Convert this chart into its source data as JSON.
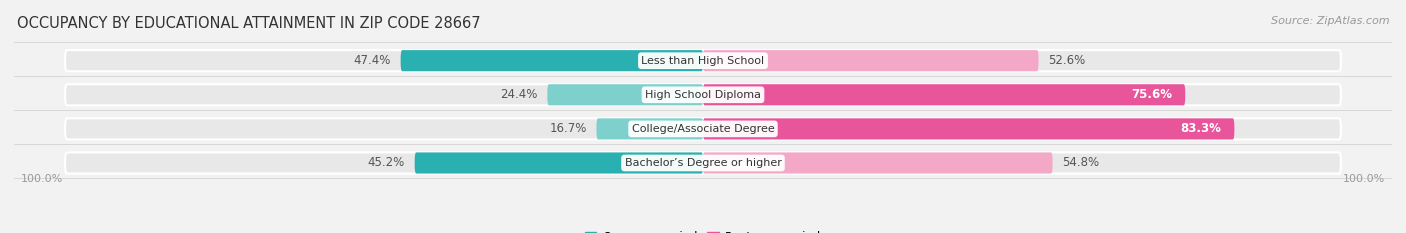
{
  "title": "OCCUPANCY BY EDUCATIONAL ATTAINMENT IN ZIP CODE 28667",
  "source": "Source: ZipAtlas.com",
  "categories": [
    "Less than High School",
    "High School Diploma",
    "College/Associate Degree",
    "Bachelor’s Degree or higher"
  ],
  "owner_pct": [
    47.4,
    24.4,
    16.7,
    45.2
  ],
  "renter_pct": [
    52.6,
    75.6,
    83.3,
    54.8
  ],
  "renter_label_white": [
    false,
    true,
    true,
    false
  ],
  "owner_color": "#2ab0b0",
  "owner_color_light": "#7dd0cc",
  "renter_color_dark": "#e8559a",
  "renter_color_light": "#f4a8c8",
  "bg_color": "#f2f2f2",
  "row_bg_color": "#e8e8e8",
  "title_fontsize": 10.5,
  "source_fontsize": 8,
  "label_fontsize": 8.5,
  "cat_fontsize": 8,
  "axis_label_fontsize": 8,
  "bar_height": 0.62,
  "fig_width": 14.06,
  "fig_height": 2.33,
  "left_label": "100.0%",
  "right_label": "100.0%"
}
